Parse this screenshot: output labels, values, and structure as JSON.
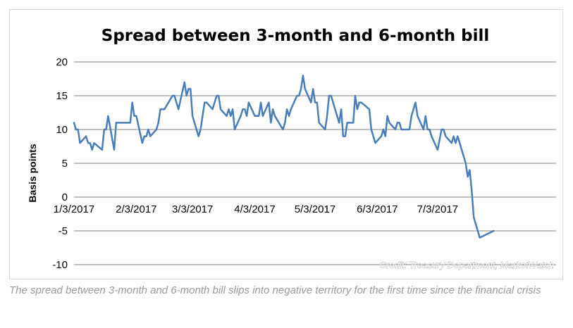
{
  "chart_data": {
    "type": "line",
    "title": "Spread between 3-month and 6-month bill",
    "xlabel": "",
    "ylabel": "Basis points",
    "ylim": [
      -10,
      20
    ],
    "yticks": [
      20,
      15,
      10,
      5,
      0,
      -5,
      -10
    ],
    "xlim": [
      "2017-01-03",
      "2017-08-31"
    ],
    "xticks": [
      {
        "date": "2017-01-03",
        "label": "1/3/2017"
      },
      {
        "date": "2017-02-03",
        "label": "2/3/2017"
      },
      {
        "date": "2017-03-03",
        "label": "3/3/2017"
      },
      {
        "date": "2017-04-03",
        "label": "4/3/2017"
      },
      {
        "date": "2017-05-03",
        "label": "5/3/2017"
      },
      {
        "date": "2017-06-03",
        "label": "6/3/2017"
      },
      {
        "date": "2017-07-03",
        "label": "7/3/2017"
      }
    ],
    "grid": true,
    "legend": "none",
    "series": [
      {
        "color": "#4a7ebb",
        "points": [
          [
            "2017-01-03",
            11
          ],
          [
            "2017-01-04",
            10
          ],
          [
            "2017-01-05",
            10
          ],
          [
            "2017-01-06",
            8
          ],
          [
            "2017-01-09",
            9
          ],
          [
            "2017-01-10",
            8
          ],
          [
            "2017-01-11",
            8
          ],
          [
            "2017-01-12",
            7
          ],
          [
            "2017-01-13",
            8
          ],
          [
            "2017-01-17",
            7
          ],
          [
            "2017-01-18",
            10
          ],
          [
            "2017-01-19",
            10
          ],
          [
            "2017-01-20",
            12
          ],
          [
            "2017-01-23",
            7
          ],
          [
            "2017-01-24",
            11
          ],
          [
            "2017-01-25",
            11
          ],
          [
            "2017-01-26",
            11
          ],
          [
            "2017-01-27",
            11
          ],
          [
            "2017-01-30",
            11
          ],
          [
            "2017-01-31",
            11
          ],
          [
            "2017-02-01",
            14
          ],
          [
            "2017-02-02",
            12
          ],
          [
            "2017-02-03",
            12
          ],
          [
            "2017-02-06",
            8
          ],
          [
            "2017-02-07",
            9
          ],
          [
            "2017-02-08",
            9
          ],
          [
            "2017-02-09",
            10
          ],
          [
            "2017-02-10",
            9
          ],
          [
            "2017-02-13",
            10
          ],
          [
            "2017-02-14",
            11
          ],
          [
            "2017-02-15",
            13
          ],
          [
            "2017-02-16",
            13
          ],
          [
            "2017-02-17",
            13
          ],
          [
            "2017-02-21",
            15
          ],
          [
            "2017-02-22",
            15
          ],
          [
            "2017-02-23",
            14
          ],
          [
            "2017-02-24",
            13
          ],
          [
            "2017-02-27",
            17
          ],
          [
            "2017-02-28",
            15
          ],
          [
            "2017-03-01",
            16
          ],
          [
            "2017-03-02",
            16
          ],
          [
            "2017-03-03",
            12
          ],
          [
            "2017-03-06",
            9
          ],
          [
            "2017-03-07",
            10
          ],
          [
            "2017-03-08",
            12
          ],
          [
            "2017-03-09",
            14
          ],
          [
            "2017-03-10",
            14
          ],
          [
            "2017-03-13",
            13
          ],
          [
            "2017-03-14",
            14
          ],
          [
            "2017-03-15",
            15
          ],
          [
            "2017-03-16",
            15
          ],
          [
            "2017-03-17",
            13
          ],
          [
            "2017-03-20",
            12
          ],
          [
            "2017-03-21",
            13
          ],
          [
            "2017-03-22",
            12
          ],
          [
            "2017-03-23",
            13
          ],
          [
            "2017-03-24",
            10
          ],
          [
            "2017-03-27",
            12
          ],
          [
            "2017-03-28",
            13
          ],
          [
            "2017-03-29",
            13
          ],
          [
            "2017-03-30",
            12
          ],
          [
            "2017-03-31",
            14
          ],
          [
            "2017-04-03",
            12
          ],
          [
            "2017-04-04",
            12
          ],
          [
            "2017-04-05",
            12
          ],
          [
            "2017-04-06",
            14
          ],
          [
            "2017-04-07",
            12
          ],
          [
            "2017-04-10",
            14
          ],
          [
            "2017-04-11",
            11
          ],
          [
            "2017-04-12",
            13
          ],
          [
            "2017-04-13",
            12
          ],
          [
            "2017-04-17",
            10
          ],
          [
            "2017-04-18",
            11
          ],
          [
            "2017-04-19",
            13
          ],
          [
            "2017-04-20",
            12
          ],
          [
            "2017-04-21",
            13
          ],
          [
            "2017-04-24",
            15
          ],
          [
            "2017-04-25",
            15
          ],
          [
            "2017-04-26",
            16
          ],
          [
            "2017-04-27",
            18
          ],
          [
            "2017-04-28",
            16
          ],
          [
            "2017-05-01",
            14
          ],
          [
            "2017-05-02",
            16
          ],
          [
            "2017-05-03",
            14
          ],
          [
            "2017-05-04",
            14
          ],
          [
            "2017-05-05",
            11
          ],
          [
            "2017-05-08",
            10
          ],
          [
            "2017-05-09",
            12
          ],
          [
            "2017-05-10",
            15
          ],
          [
            "2017-05-11",
            15
          ],
          [
            "2017-05-12",
            14
          ],
          [
            "2017-05-15",
            11
          ],
          [
            "2017-05-16",
            13
          ],
          [
            "2017-05-17",
            9
          ],
          [
            "2017-05-18",
            9
          ],
          [
            "2017-05-19",
            11
          ],
          [
            "2017-05-22",
            11
          ],
          [
            "2017-05-23",
            15
          ],
          [
            "2017-05-24",
            13
          ],
          [
            "2017-05-25",
            14
          ],
          [
            "2017-05-26",
            14
          ],
          [
            "2017-05-30",
            13
          ],
          [
            "2017-05-31",
            10
          ],
          [
            "2017-06-01",
            9
          ],
          [
            "2017-06-02",
            8
          ],
          [
            "2017-06-05",
            9
          ],
          [
            "2017-06-06",
            10
          ],
          [
            "2017-06-07",
            9
          ],
          [
            "2017-06-08",
            12
          ],
          [
            "2017-06-09",
            11
          ],
          [
            "2017-06-12",
            10
          ],
          [
            "2017-06-13",
            11
          ],
          [
            "2017-06-14",
            11
          ],
          [
            "2017-06-15",
            10
          ],
          [
            "2017-06-16",
            10
          ],
          [
            "2017-06-19",
            10
          ],
          [
            "2017-06-20",
            12
          ],
          [
            "2017-06-21",
            13
          ],
          [
            "2017-06-22",
            14
          ],
          [
            "2017-06-23",
            12
          ],
          [
            "2017-06-26",
            10
          ],
          [
            "2017-06-27",
            12
          ],
          [
            "2017-06-28",
            10
          ],
          [
            "2017-06-29",
            10
          ],
          [
            "2017-06-30",
            9
          ],
          [
            "2017-07-03",
            7
          ],
          [
            "2017-07-05",
            10
          ],
          [
            "2017-07-06",
            10
          ],
          [
            "2017-07-07",
            9
          ],
          [
            "2017-07-10",
            8
          ],
          [
            "2017-07-11",
            9
          ],
          [
            "2017-07-12",
            8
          ],
          [
            "2017-07-13",
            9
          ],
          [
            "2017-07-14",
            8
          ],
          [
            "2017-07-17",
            5
          ],
          [
            "2017-07-18",
            3
          ],
          [
            "2017-07-19",
            4
          ],
          [
            "2017-07-20",
            1
          ],
          [
            "2017-07-21",
            -3
          ],
          [
            "2017-07-24",
            -6
          ],
          [
            "2017-07-31",
            -5
          ]
        ]
      }
    ]
  },
  "credit": "Credit: Treasury Department, MarketWatch",
  "caption": "The spread between 3-month and 6-month bill slips into negative territory for the first time since the financial crisis",
  "colors": {
    "line": "#4a7ebb",
    "grid": "#868686",
    "frame": "#d9d9d9",
    "caption": "#9b9b9b"
  }
}
